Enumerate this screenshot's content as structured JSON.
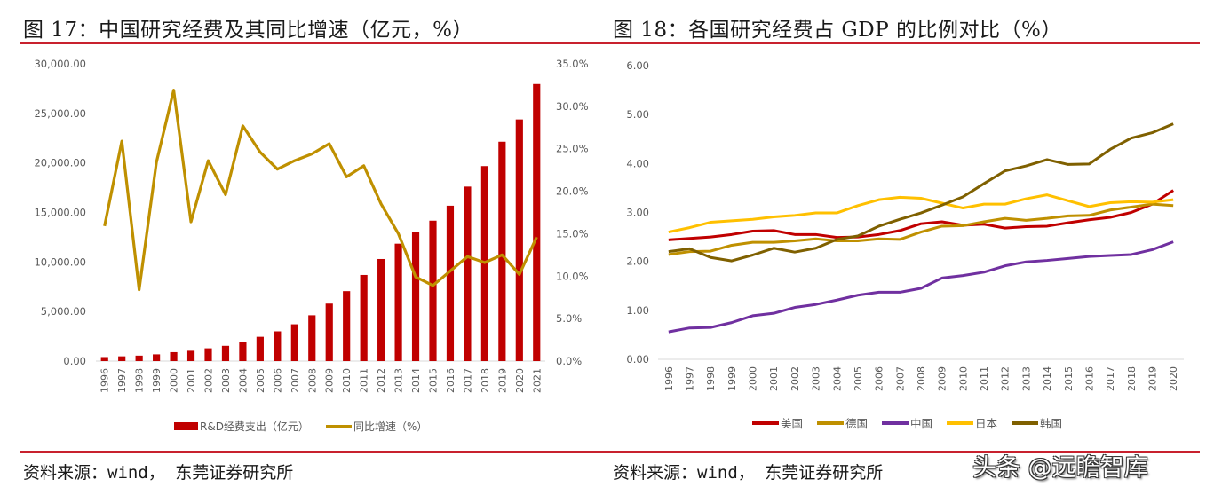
{
  "figure17": {
    "title": "图 17：中国研究经费及其同比增速（亿元，%）",
    "source": "资料来源：wind， 东莞证券研究所"
  },
  "figure18": {
    "title": "图 18：各国研究经费占 GDP 的比例对比（%）",
    "source": "资料来源：wind， 东莞证券研究所"
  },
  "watermark": "头条 @远瞻智库",
  "chart_data": [
    {
      "type": "bar",
      "title": "图 17：中国研究经费及其同比增速（亿元，%）",
      "categories": [
        "1996",
        "1997",
        "1998",
        "1999",
        "2000",
        "2001",
        "2002",
        "2003",
        "2004",
        "2005",
        "2006",
        "2007",
        "2008",
        "2009",
        "2010",
        "2011",
        "2012",
        "2013",
        "2014",
        "2015",
        "2016",
        "2017",
        "2018",
        "2019",
        "2020",
        "2021"
      ],
      "series": [
        {
          "name": "R&D经费支出（亿元）",
          "type": "bar",
          "axis": "left",
          "color": "#c00000",
          "values": [
            405,
            480,
            550,
            680,
            900,
            1040,
            1290,
            1540,
            1970,
            2450,
            3000,
            3710,
            4620,
            5800,
            7060,
            8690,
            10300,
            11850,
            13020,
            14170,
            15680,
            17610,
            19680,
            22140,
            24390,
            27960
          ]
        },
        {
          "name": "同比增速（%）",
          "type": "line",
          "axis": "right",
          "color": "#bf9000",
          "values": [
            15.9,
            25.9,
            8.4,
            23.4,
            31.9,
            16.4,
            23.6,
            19.6,
            27.7,
            24.6,
            22.6,
            23.6,
            24.4,
            25.6,
            21.7,
            23.0,
            18.5,
            15.0,
            9.9,
            8.9,
            10.6,
            12.3,
            11.6,
            12.5,
            10.2,
            14.6
          ]
        }
      ],
      "left_axis": {
        "ylim": [
          0,
          30000
        ],
        "ticks": [
          "0.00",
          "5,000.00",
          "10,000.00",
          "15,000.00",
          "20,000.00",
          "25,000.00",
          "30,000.00"
        ]
      },
      "right_axis": {
        "ylim": [
          0,
          35
        ],
        "ticks": [
          "0.0%",
          "5.0%",
          "10.0%",
          "15.0%",
          "20.0%",
          "25.0%",
          "30.0%",
          "35.0%"
        ]
      },
      "legend": [
        "R&D经费支出（亿元）",
        "同比增速（%）"
      ],
      "legend_position": "bottom",
      "grid": false
    },
    {
      "type": "line",
      "title": "图 18：各国研究经费占 GDP 的比例对比（%）",
      "x": [
        "1996",
        "1997",
        "1998",
        "1999",
        "2000",
        "2001",
        "2002",
        "2003",
        "2004",
        "2005",
        "2006",
        "2007",
        "2008",
        "2009",
        "2010",
        "2011",
        "2012",
        "2013",
        "2014",
        "2015",
        "2016",
        "2017",
        "2018",
        "2019",
        "2020"
      ],
      "series": [
        {
          "name": "美国",
          "color": "#c00000",
          "values": [
            2.44,
            2.47,
            2.5,
            2.55,
            2.62,
            2.63,
            2.55,
            2.55,
            2.49,
            2.5,
            2.55,
            2.63,
            2.77,
            2.81,
            2.74,
            2.76,
            2.68,
            2.71,
            2.72,
            2.79,
            2.85,
            2.9,
            3.0,
            3.17,
            3.45
          ]
        },
        {
          "name": "德国",
          "color": "#bf9000",
          "values": [
            2.14,
            2.2,
            2.21,
            2.33,
            2.39,
            2.39,
            2.42,
            2.46,
            2.42,
            2.42,
            2.46,
            2.45,
            2.6,
            2.72,
            2.73,
            2.81,
            2.88,
            2.84,
            2.88,
            2.93,
            2.94,
            3.05,
            3.11,
            3.17,
            3.14
          ]
        },
        {
          "name": "中国",
          "color": "#7030a0",
          "values": [
            0.56,
            0.64,
            0.65,
            0.75,
            0.89,
            0.94,
            1.06,
            1.12,
            1.21,
            1.31,
            1.37,
            1.37,
            1.45,
            1.66,
            1.71,
            1.78,
            1.91,
            1.99,
            2.02,
            2.06,
            2.1,
            2.12,
            2.14,
            2.24,
            2.4
          ]
        },
        {
          "name": "日本",
          "color": "#ffc000",
          "values": [
            2.6,
            2.69,
            2.8,
            2.83,
            2.86,
            2.91,
            2.94,
            2.99,
            2.99,
            3.14,
            3.26,
            3.31,
            3.29,
            3.19,
            3.09,
            3.17,
            3.17,
            3.28,
            3.36,
            3.24,
            3.12,
            3.2,
            3.22,
            3.21,
            3.26
          ]
        },
        {
          "name": "韩国",
          "color": "#7f6000",
          "values": [
            2.2,
            2.26,
            2.08,
            2.01,
            2.13,
            2.27,
            2.19,
            2.27,
            2.45,
            2.52,
            2.72,
            2.86,
            2.99,
            3.15,
            3.32,
            3.59,
            3.85,
            3.95,
            4.08,
            3.98,
            3.99,
            4.29,
            4.52,
            4.63,
            4.81
          ]
        }
      ],
      "ylim": [
        0,
        6
      ],
      "y_ticks": [
        "0.00",
        "1.00",
        "2.00",
        "3.00",
        "4.00",
        "5.00",
        "6.00"
      ],
      "legend": [
        "美国",
        "德国",
        "中国",
        "日本",
        "韩国"
      ],
      "legend_position": "bottom",
      "grid": false
    }
  ]
}
